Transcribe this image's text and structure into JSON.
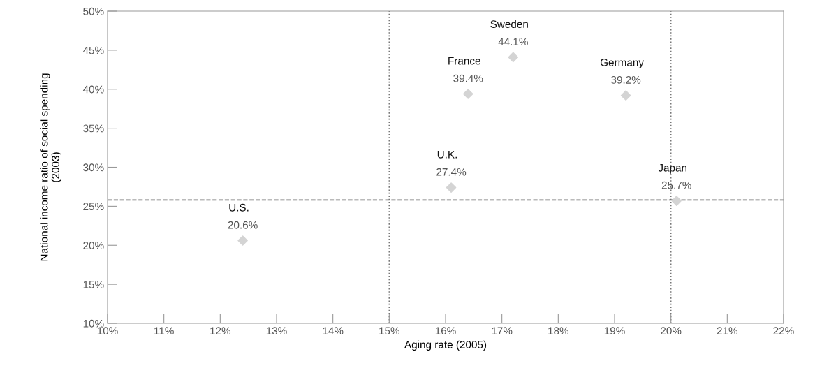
{
  "chart_data": {
    "type": "scatter",
    "xlabel": "Aging rate (2005)",
    "ylabel": "National income ratio of social spending\n(2003)",
    "x": [
      12.4,
      16.1,
      16.4,
      17.2,
      19.2,
      20.1
    ],
    "series": [
      {
        "color": "#d4d4d4",
        "values": [
          20.6,
          27.4,
          39.4,
          44.1,
          39.2,
          25.7
        ]
      }
    ],
    "value_labels": [
      "20.6%",
      "27.4%",
      "39.4%",
      "44.1%",
      "39.2%",
      "25.7%"
    ],
    "annotations": [
      {
        "text": "U.S.",
        "x": 12.4,
        "y": 20.6
      },
      {
        "text": "U.K.",
        "x": 16.1,
        "y": 27.4
      },
      {
        "text": "France",
        "x": 16.4,
        "y": 39.4
      },
      {
        "text": "Sweden",
        "x": 17.2,
        "y": 44.1
      },
      {
        "text": "Germany",
        "x": 19.2,
        "y": 39.2
      },
      {
        "text": "Japan",
        "x": 20.1,
        "y": 25.7
      }
    ],
    "marker": "diamond",
    "xlim": [
      10,
      22
    ],
    "xticks": [
      {
        "value": 10,
        "label": "10%"
      },
      {
        "value": 11,
        "label": "11%"
      },
      {
        "value": 12,
        "label": "12%"
      },
      {
        "value": 13,
        "label": "13%"
      },
      {
        "value": 14,
        "label": "14%"
      },
      {
        "value": 15,
        "label": "15%"
      },
      {
        "value": 16,
        "label": "16%"
      },
      {
        "value": 17,
        "label": "17%"
      },
      {
        "value": 18,
        "label": "18%"
      },
      {
        "value": 19,
        "label": "19%"
      },
      {
        "value": 20,
        "label": "20%"
      },
      {
        "value": 21,
        "label": "21%"
      },
      {
        "value": 22,
        "label": "22%"
      }
    ],
    "ylim": [
      10,
      50
    ],
    "yticks": [
      {
        "value": 10,
        "label": "10%"
      },
      {
        "value": 15,
        "label": "15%"
      },
      {
        "value": 20,
        "label": "20%"
      },
      {
        "value": 25,
        "label": "25%"
      },
      {
        "value": 30,
        "label": "30%"
      },
      {
        "value": 35,
        "label": "35%"
      },
      {
        "value": 40,
        "label": "40%"
      },
      {
        "value": 45,
        "label": "45%"
      },
      {
        "value": 50,
        "label": "50%"
      }
    ],
    "ref_lines": [
      {
        "axis": "x",
        "value": 15,
        "line_style": "dotted",
        "color": "#777777"
      },
      {
        "axis": "x",
        "value": 20,
        "line_style": "dotted",
        "color": "#777777"
      },
      {
        "axis": "y",
        "value": 25.8,
        "line_style": "dashed",
        "color": "#777777"
      }
    ],
    "grid": false,
    "legend": false
  }
}
